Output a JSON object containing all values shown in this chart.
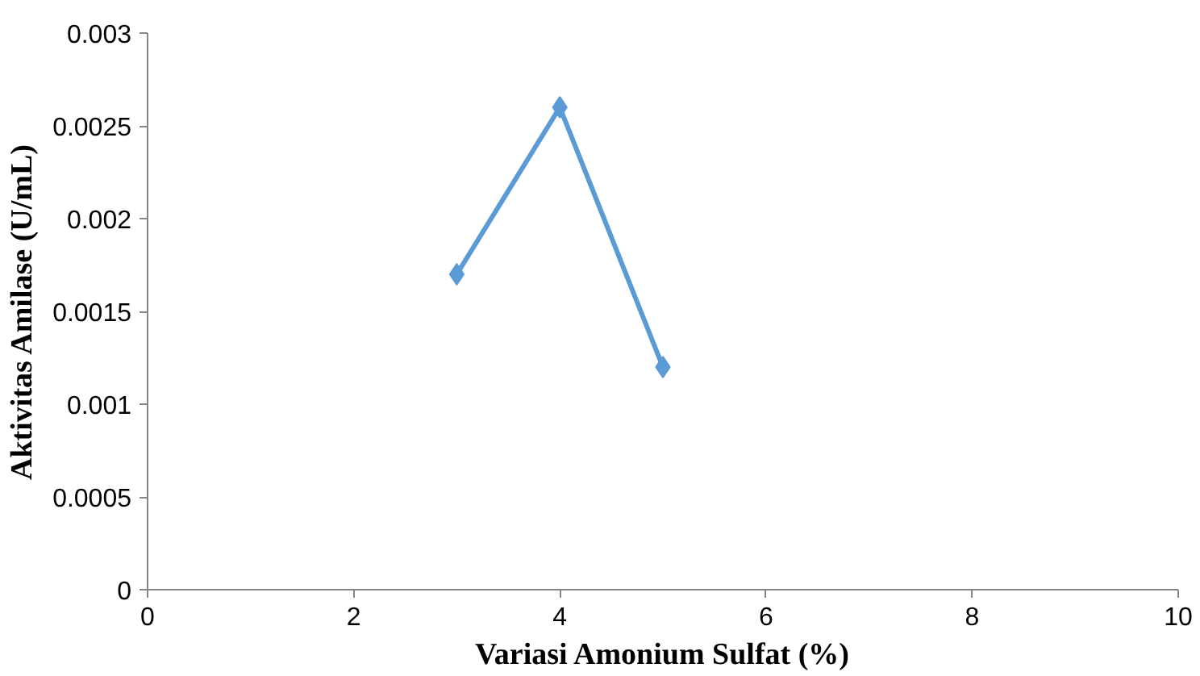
{
  "chart_data": {
    "type": "line",
    "xlabel": "Variasi Amonium Sulfat (%)",
    "ylabel": "Aktivitas Amilase (U/mL)",
    "x": [
      3,
      4,
      5
    ],
    "series": [
      {
        "color": "#5b9bd5",
        "values": [
          0.0017,
          0.0026,
          0.0012
        ]
      }
    ],
    "xlim": [
      0,
      10
    ],
    "xticks": [
      0,
      2,
      4,
      6,
      8,
      10
    ],
    "ylim": [
      0,
      0.003
    ],
    "yticks": [
      0,
      0.0005,
      0.001,
      0.0015,
      0.002,
      0.0025,
      0.003
    ],
    "grid": false,
    "marker": "diamond",
    "line_style": "solid"
  }
}
